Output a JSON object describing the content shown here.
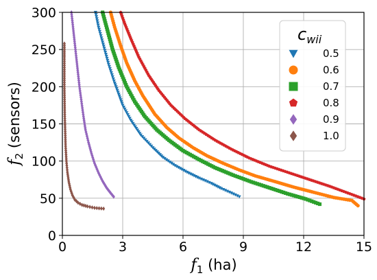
{
  "chart_data": {
    "type": "scatter",
    "xlim": [
      0,
      15
    ],
    "ylim": [
      0,
      300
    ],
    "xticks": [
      "0",
      "3",
      "6",
      "9",
      "12",
      "15"
    ],
    "yticks": [
      "0",
      "50",
      "100",
      "150",
      "200",
      "250",
      "300"
    ],
    "xlabel": {
      "symbol": "f",
      "subscript": "1",
      "unit": " (ha)"
    },
    "ylabel": {
      "symbol": "f",
      "subscript": "2",
      "unit": " (sensors)"
    },
    "grid": true,
    "legend": {
      "title_symbol": "c",
      "title_subscript": "wii",
      "placement": "top-right"
    },
    "series": [
      {
        "name": "0.5",
        "color": "#1f77b4",
        "marker": "triangle-down",
        "points": [
          [
            1.65,
            300
          ],
          [
            1.8,
            280
          ],
          [
            2.0,
            260
          ],
          [
            2.3,
            230
          ],
          [
            2.6,
            205
          ],
          [
            3.0,
            175
          ],
          [
            3.4,
            155
          ],
          [
            3.9,
            135
          ],
          [
            4.5,
            118
          ],
          [
            5.0,
            105
          ],
          [
            5.6,
            94
          ],
          [
            6.2,
            85
          ],
          [
            6.8,
            77
          ],
          [
            7.4,
            70
          ],
          [
            7.9,
            63
          ],
          [
            8.4,
            57
          ],
          [
            8.8,
            52
          ]
        ]
      },
      {
        "name": "0.6",
        "color": "#ff7f0e",
        "marker": "circle",
        "points": [
          [
            2.4,
            300
          ],
          [
            2.6,
            280
          ],
          [
            2.9,
            255
          ],
          [
            3.2,
            232
          ],
          [
            3.6,
            208
          ],
          [
            4.0,
            188
          ],
          [
            4.6,
            163
          ],
          [
            5.2,
            145
          ],
          [
            5.8,
            131
          ],
          [
            6.5,
            118
          ],
          [
            7.2,
            107
          ],
          [
            8.0,
            97
          ],
          [
            8.8,
            88
          ],
          [
            9.6,
            80
          ],
          [
            10.5,
            73
          ],
          [
            11.5,
            65
          ],
          [
            12.5,
            58
          ],
          [
            13.5,
            51
          ],
          [
            14.4,
            47
          ],
          [
            14.7,
            40
          ]
        ]
      },
      {
        "name": "0.7",
        "color": "#2ca02c",
        "marker": "square",
        "points": [
          [
            2.0,
            300
          ],
          [
            2.2,
            280
          ],
          [
            2.5,
            250
          ],
          [
            2.8,
            226
          ],
          [
            3.2,
            200
          ],
          [
            3.6,
            180
          ],
          [
            4.1,
            160
          ],
          [
            4.7,
            142
          ],
          [
            5.3,
            128
          ],
          [
            6.0,
            114
          ],
          [
            6.8,
            102
          ],
          [
            7.6,
            91
          ],
          [
            8.5,
            81
          ],
          [
            9.4,
            72
          ],
          [
            10.3,
            64
          ],
          [
            11.2,
            56
          ],
          [
            12.1,
            49
          ],
          [
            12.8,
            42
          ]
        ]
      },
      {
        "name": "0.8",
        "color": "#d62728",
        "marker": "pentagon",
        "points": [
          [
            2.9,
            300
          ],
          [
            3.1,
            285
          ],
          [
            3.4,
            265
          ],
          [
            3.8,
            240
          ],
          [
            4.3,
            215
          ],
          [
            4.8,
            195
          ],
          [
            5.4,
            175
          ],
          [
            6.1,
            157
          ],
          [
            6.8,
            142
          ],
          [
            7.6,
            128
          ],
          [
            8.4,
            116
          ],
          [
            9.3,
            104
          ],
          [
            10.3,
            93
          ],
          [
            11.3,
            84
          ],
          [
            12.3,
            75
          ],
          [
            13.3,
            66
          ],
          [
            14.3,
            56
          ],
          [
            15.0,
            49
          ]
        ]
      },
      {
        "name": "0.9",
        "color": "#9467bd",
        "marker": "diamond",
        "points": [
          [
            0.45,
            300
          ],
          [
            0.55,
            275
          ],
          [
            0.65,
            250
          ],
          [
            0.75,
            225
          ],
          [
            0.85,
            200
          ],
          [
            0.95,
            180
          ],
          [
            1.05,
            160
          ],
          [
            1.15,
            142
          ],
          [
            1.3,
            125
          ],
          [
            1.45,
            110
          ],
          [
            1.6,
            97
          ],
          [
            1.8,
            84
          ],
          [
            2.0,
            73
          ],
          [
            2.2,
            64
          ],
          [
            2.4,
            57
          ],
          [
            2.55,
            52
          ]
        ]
      },
      {
        "name": "1.0",
        "color": "#8c564b",
        "marker": "diamond",
        "points": [
          [
            0.1,
            258
          ],
          [
            0.1,
            240
          ],
          [
            0.1,
            220
          ],
          [
            0.1,
            200
          ],
          [
            0.11,
            180
          ],
          [
            0.12,
            160
          ],
          [
            0.14,
            140
          ],
          [
            0.16,
            120
          ],
          [
            0.2,
            100
          ],
          [
            0.25,
            85
          ],
          [
            0.32,
            72
          ],
          [
            0.4,
            62
          ],
          [
            0.5,
            54
          ],
          [
            0.62,
            48
          ],
          [
            0.78,
            44
          ],
          [
            0.98,
            41
          ],
          [
            1.25,
            39
          ],
          [
            1.6,
            37
          ],
          [
            2.05,
            36
          ]
        ]
      }
    ]
  }
}
